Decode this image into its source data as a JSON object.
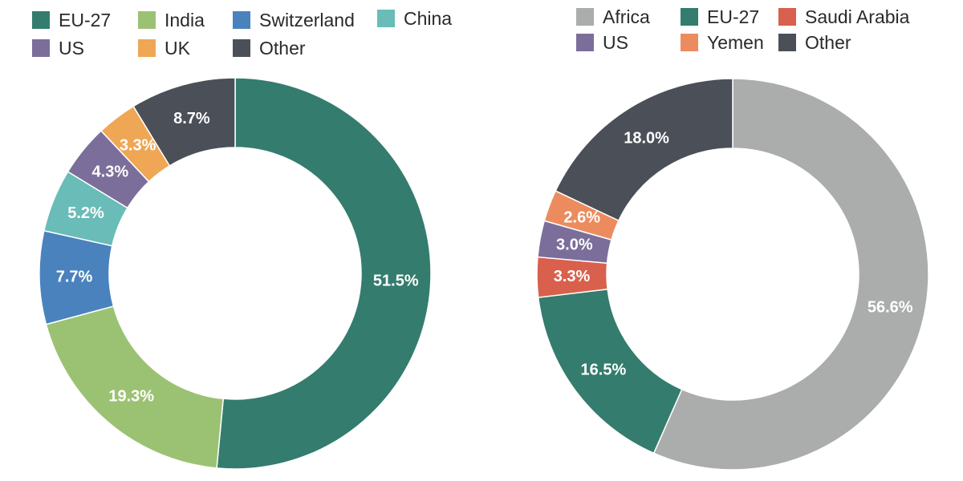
{
  "chart_data": [
    {
      "type": "pie",
      "donut": true,
      "legend_position": "top",
      "categories": [
        "EU-27",
        "India",
        "Switzerland",
        "China",
        "US",
        "UK",
        "Other"
      ],
      "values": [
        51.5,
        19.3,
        7.7,
        5.2,
        4.3,
        3.3,
        8.7
      ],
      "labels": [
        "51.5%",
        "19.3%",
        "7.7%",
        "5.2%",
        "4.3%",
        "3.3%",
        "8.7%"
      ],
      "colors": [
        "#347C6E",
        "#9BC273",
        "#4A82BE",
        "#69BCB7",
        "#7C6E9A",
        "#EFA755",
        "#4B4F58"
      ],
      "legend": [
        {
          "label": "EU-27",
          "color": "#347C6E"
        },
        {
          "label": "India",
          "color": "#9BC273"
        },
        {
          "label": "Switzerland",
          "color": "#4A82BE"
        },
        {
          "label": "China",
          "color": "#69BCB7"
        },
        {
          "label": "US",
          "color": "#7C6E9A"
        },
        {
          "label": "UK",
          "color": "#EFA755"
        },
        {
          "label": "Other",
          "color": "#4B4F58"
        }
      ]
    },
    {
      "type": "pie",
      "donut": true,
      "legend_position": "top",
      "categories": [
        "Africa",
        "EU-27",
        "Saudi Arabia",
        "US",
        "Yemen",
        "Other"
      ],
      "values": [
        56.6,
        16.5,
        3.3,
        3.0,
        2.6,
        18.0
      ],
      "labels": [
        "56.6%",
        "16.5%",
        "3.3%",
        "3.0%",
        "2.6%",
        "18.0%"
      ],
      "colors": [
        "#AAADAC",
        "#347C6E",
        "#D9604D",
        "#7C6E9A",
        "#EC8C5E",
        "#4B4F58"
      ],
      "legend": [
        {
          "label": "Africa",
          "color": "#AAADAC"
        },
        {
          "label": "EU-27",
          "color": "#347C6E"
        },
        {
          "label": "Saudi Arabia",
          "color": "#D9604D"
        },
        {
          "label": "US",
          "color": "#7C6E9A"
        },
        {
          "label": "Yemen",
          "color": "#EC8C5E"
        },
        {
          "label": "Other",
          "color": "#4B4F58"
        }
      ]
    }
  ]
}
